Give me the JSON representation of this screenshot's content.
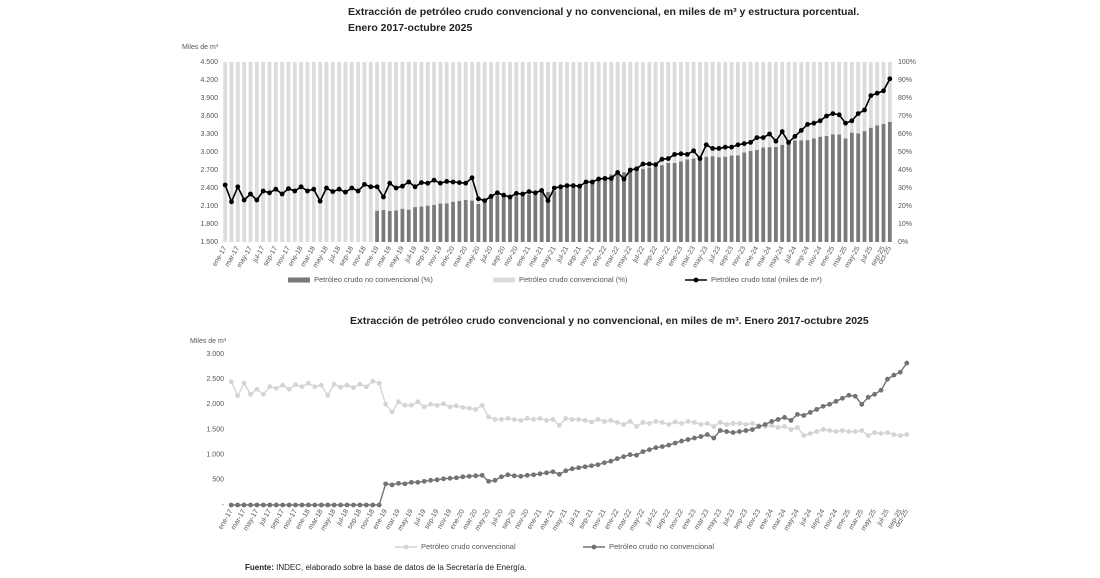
{
  "chart_data": [
    {
      "type": "bar",
      "stacked": true,
      "title": "Extracción de petróleo crudo convencional y no convencional, en miles de m³ y estructura porcentual.",
      "subtitle": "Enero 2017-octubre 2025",
      "ylabel": "Miles de m³",
      "categories": [
        "ene-17",
        null,
        "mar-17",
        null,
        "may-17",
        null,
        "jul-17",
        null,
        "sep-17",
        null,
        "nov-17",
        null,
        "ene-18",
        null,
        "mar-18",
        null,
        "may-18",
        null,
        "jul-18",
        null,
        "sep-18",
        null,
        "nov-18",
        null,
        "ene-19",
        null,
        "mar-19",
        null,
        "may-19",
        null,
        "jul-19",
        null,
        "sep-19",
        null,
        "nov-19",
        null,
        "ene-20",
        null,
        "mar-20",
        null,
        "may-20",
        null,
        "jul-20",
        null,
        "sep-20",
        null,
        "nov-20",
        null,
        "ene-21",
        null,
        "mar-21",
        null,
        "may-21",
        null,
        "jul-21",
        null,
        "sep-21",
        null,
        "nov-21",
        null,
        "ene-22",
        null,
        "mar-22",
        null,
        "may-22",
        null,
        "jul-22",
        null,
        "sep-22",
        null,
        "nov-22",
        null,
        "ene-23",
        null,
        "mar-23",
        null,
        "may-23",
        null,
        "jul-23",
        null,
        "sep-23",
        null,
        "nov-23",
        null,
        "ene-24",
        null,
        "mar-24",
        null,
        "may-24",
        null,
        "jul-24",
        null,
        "sep-24",
        null,
        "nov-24",
        null,
        "ene-25",
        null,
        "mar-25",
        null,
        "may-25",
        null,
        "jul-25",
        null,
        "sep-25",
        "oct-25"
      ],
      "ylim": [
        1500,
        4500
      ],
      "yticks": [
        {
          "value": 1500,
          "label": "1.500"
        },
        {
          "value": 1800,
          "label": "1.800"
        },
        {
          "value": 2100,
          "label": "2.100"
        },
        {
          "value": 2400,
          "label": "2.400"
        },
        {
          "value": 2700,
          "label": "2.700"
        },
        {
          "value": 3000,
          "label": "3.000"
        },
        {
          "value": 3300,
          "label": "3.300"
        },
        {
          "value": 3600,
          "label": "3.600"
        },
        {
          "value": 3900,
          "label": "3.900"
        },
        {
          "value": 4200,
          "label": "4.200"
        },
        {
          "value": 4500,
          "label": "4.500"
        }
      ],
      "y2lim": [
        0,
        100
      ],
      "y2ticks": [
        {
          "value": 0,
          "label": "0%"
        },
        {
          "value": 10,
          "label": "10%"
        },
        {
          "value": 20,
          "label": "20%"
        },
        {
          "value": 30,
          "label": "30%"
        },
        {
          "value": 40,
          "label": "40%"
        },
        {
          "value": 50,
          "label": "50%"
        },
        {
          "value": 60,
          "label": "60%"
        },
        {
          "value": 70,
          "label": "70%"
        },
        {
          "value": 80,
          "label": "80%"
        },
        {
          "value": 90,
          "label": "90%"
        },
        {
          "value": 100,
          "label": "100%"
        }
      ],
      "series": [
        {
          "name": "Petróleo crudo no convencional (%)",
          "type": "bar",
          "axis": "y2",
          "color": "#7a7a7a",
          "values": [
            0,
            0,
            0,
            0,
            0,
            0,
            0,
            0,
            0,
            0,
            0,
            0,
            0,
            0,
            0,
            0,
            0,
            0,
            0,
            0,
            0,
            0,
            0,
            0,
            17.4,
            17.8,
            17.3,
            17.5,
            18.5,
            18.0,
            19.4,
            19.7,
            20.2,
            20.6,
            21.4,
            21.5,
            22.4,
            22.9,
            23.4,
            23.0,
            21.2,
            22.4,
            24.8,
            25.9,
            25.4,
            25.3,
            25.5,
            26.1,
            26.5,
            27.6,
            28.0,
            27.9,
            28.3,
            29.8,
            30.3,
            31.1,
            32.1,
            32.0,
            33.6,
            34.1,
            35.9,
            37.5,
            37.6,
            38.8,
            39.3,
            40.4,
            40.7,
            41.4,
            42.7,
            42.7,
            43.9,
            43.9,
            44.8,
            45.9,
            46.4,
            46.0,
            47.4,
            47.7,
            47.1,
            47.4,
            48.1,
            48.1,
            49.7,
            50.6,
            51.2,
            52.5,
            52.7,
            52.8,
            53.9,
            56.3,
            56.4,
            56.5,
            56.6,
            57.5,
            58.5,
            58.9,
            59.9,
            59.7,
            57.5,
            60.8,
            60.4,
            61.6,
            63.5,
            64.8,
            65.7,
            66.8
          ]
        },
        {
          "name": "Petróleo crudo convencional (%)",
          "type": "bar",
          "axis": "y2",
          "color": "#dcdcdc",
          "values": [
            100,
            100,
            100,
            100,
            100,
            100,
            100,
            100,
            100,
            100,
            100,
            100,
            100,
            100,
            100,
            100,
            100,
            100,
            100,
            100,
            100,
            100,
            100,
            100,
            82.6,
            82.2,
            82.7,
            82.5,
            81.5,
            82.0,
            80.6,
            80.3,
            79.8,
            79.4,
            78.6,
            78.5,
            77.6,
            77.1,
            76.6,
            77.0,
            78.8,
            77.6,
            75.2,
            74.1,
            74.6,
            74.7,
            74.5,
            73.9,
            73.5,
            72.4,
            72.0,
            72.1,
            71.7,
            70.2,
            69.7,
            68.9,
            67.9,
            68.0,
            66.4,
            65.9,
            64.1,
            62.5,
            62.4,
            61.2,
            60.7,
            59.6,
            59.3,
            58.6,
            57.3,
            57.3,
            56.1,
            56.1,
            55.2,
            54.1,
            53.6,
            54.0,
            52.6,
            52.3,
            52.9,
            52.6,
            51.9,
            51.9,
            50.3,
            49.4,
            48.8,
            47.5,
            47.3,
            47.2,
            46.1,
            43.7,
            43.6,
            43.5,
            43.4,
            42.5,
            41.5,
            41.1,
            40.1,
            40.3,
            42.5,
            39.2,
            39.6,
            38.4,
            36.5,
            35.2,
            34.3,
            33.2
          ]
        },
        {
          "name": "Petróleo crudo total (miles de m³)",
          "type": "line",
          "axis": "y",
          "color": "#000000",
          "values": [
            2450,
            2170,
            2420,
            2200,
            2300,
            2200,
            2350,
            2320,
            2380,
            2300,
            2390,
            2350,
            2420,
            2350,
            2380,
            2180,
            2400,
            2340,
            2380,
            2330,
            2400,
            2350,
            2460,
            2420,
            2420,
            2250,
            2480,
            2400,
            2430,
            2500,
            2420,
            2490,
            2480,
            2530,
            2480,
            2510,
            2500,
            2490,
            2480,
            2570,
            2220,
            2190,
            2260,
            2320,
            2280,
            2250,
            2310,
            2300,
            2340,
            2320,
            2360,
            2190,
            2400,
            2420,
            2440,
            2440,
            2430,
            2500,
            2500,
            2550,
            2560,
            2560,
            2660,
            2550,
            2700,
            2720,
            2800,
            2800,
            2790,
            2880,
            2890,
            2960,
            2970,
            2960,
            3020,
            2890,
            3120,
            3060,
            3060,
            3080,
            3080,
            3120,
            3140,
            3160,
            3240,
            3240,
            3300,
            3180,
            3340,
            3160,
            3260,
            3360,
            3460,
            3480,
            3520,
            3600,
            3640,
            3620,
            3480,
            3520,
            3640,
            3700,
            3940,
            3980,
            4020,
            4220
          ]
        }
      ]
    },
    {
      "type": "line",
      "title": "Extracción de petróleo crudo convencional y no convencional, en miles de m³. Enero 2017-octubre 2025",
      "ylabel": "Miles de m³",
      "categories": [
        "ene-17",
        null,
        "mar-17",
        null,
        "may-17",
        null,
        "jul-17",
        null,
        "sep-17",
        null,
        "nov-17",
        null,
        "ene-18",
        null,
        "mar-18",
        null,
        "may-18",
        null,
        "jul-18",
        null,
        "sep-18",
        null,
        "nov-18",
        null,
        "ene-19",
        null,
        "mar-19",
        null,
        "may-19",
        null,
        "jul-19",
        null,
        "sep-19",
        null,
        "nov-19",
        null,
        "ene-20",
        null,
        "mar-20",
        null,
        "may-20",
        null,
        "jul-20",
        null,
        "sep-20",
        null,
        "nov-20",
        null,
        "ene-21",
        null,
        "mar-21",
        null,
        "may-21",
        null,
        "jul-21",
        null,
        "sep-21",
        null,
        "nov-21",
        null,
        "ene-22",
        null,
        "mar-22",
        null,
        "may-22",
        null,
        "jul-22",
        null,
        "sep-22",
        null,
        "nov-22",
        null,
        "ene-23",
        null,
        "mar-23",
        null,
        "may-23",
        null,
        "jul-23",
        null,
        "sep-23",
        null,
        "nov-23",
        null,
        "ene-24",
        null,
        "mar-24",
        null,
        "may-24",
        null,
        "jul-24",
        null,
        "sep-24",
        null,
        "nov-24",
        null,
        "ene-25",
        null,
        "mar-25",
        null,
        "may-25",
        null,
        "jul-25",
        null,
        "sep-25",
        "oct-25"
      ],
      "ylim": [
        0,
        3000
      ],
      "yticks": [
        {
          "value": 0,
          "label": "-"
        },
        500,
        {
          "value": 1000,
          "label": "1.000"
        },
        {
          "value": 1500,
          "label": "1.500"
        },
        {
          "value": 2000,
          "label": "2.000"
        },
        {
          "value": 2500,
          "label": "2.500"
        },
        {
          "value": 3000,
          "label": "3.000"
        }
      ],
      "series": [
        {
          "name": "Petróleo crudo convencional",
          "color": "#d4d4d4",
          "values": [
            2450,
            2170,
            2420,
            2200,
            2300,
            2200,
            2350,
            2320,
            2380,
            2300,
            2390,
            2350,
            2420,
            2350,
            2380,
            2180,
            2400,
            2340,
            2380,
            2330,
            2400,
            2350,
            2460,
            2420,
            2000,
            1850,
            2050,
            1980,
            1980,
            2050,
            1950,
            2000,
            1980,
            2010,
            1950,
            1970,
            1940,
            1920,
            1900,
            1980,
            1750,
            1700,
            1700,
            1720,
            1700,
            1680,
            1720,
            1700,
            1720,
            1680,
            1700,
            1580,
            1720,
            1700,
            1700,
            1680,
            1650,
            1700,
            1660,
            1680,
            1640,
            1600,
            1660,
            1560,
            1640,
            1620,
            1660,
            1640,
            1600,
            1650,
            1620,
            1660,
            1640,
            1600,
            1620,
            1560,
            1640,
            1600,
            1620,
            1620,
            1600,
            1620,
            1580,
            1560,
            1580,
            1540,
            1560,
            1500,
            1540,
            1380,
            1420,
            1460,
            1500,
            1480,
            1460,
            1480,
            1460,
            1460,
            1480,
            1380,
            1440,
            1420,
            1440,
            1400,
            1380,
            1400
          ]
        },
        {
          "name": "Petróleo crudo no convencional",
          "color": "#737373",
          "values": [
            0,
            0,
            0,
            0,
            0,
            0,
            0,
            0,
            0,
            0,
            0,
            0,
            0,
            0,
            0,
            0,
            0,
            0,
            0,
            0,
            0,
            0,
            0,
            0,
            420,
            400,
            430,
            420,
            450,
            450,
            470,
            490,
            500,
            520,
            530,
            540,
            560,
            570,
            580,
            590,
            470,
            490,
            560,
            600,
            580,
            570,
            590,
            600,
            620,
            640,
            660,
            610,
            680,
            720,
            740,
            760,
            780,
            800,
            840,
            870,
            920,
            960,
            1000,
            990,
            1060,
            1100,
            1140,
            1160,
            1190,
            1230,
            1270,
            1300,
            1330,
            1360,
            1400,
            1330,
            1480,
            1460,
            1440,
            1460,
            1480,
            1500,
            1560,
            1600,
            1660,
            1700,
            1740,
            1680,
            1800,
            1780,
            1840,
            1900,
            1960,
            2000,
            2060,
            2120,
            2180,
            2160,
            2000,
            2140,
            2200,
            2280,
            2500,
            2580,
            2640,
            2820
          ]
        }
      ]
    }
  ],
  "source": {
    "label": "Fuente:",
    "text": "INDEC, elaborado sobre la base de datos de la Secretaría de Energía."
  }
}
